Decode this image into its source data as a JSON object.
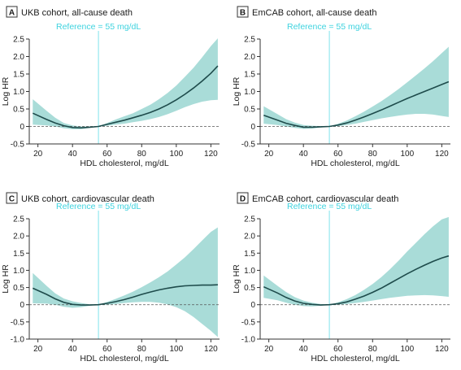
{
  "colors": {
    "band": "#a9dcd8",
    "curve": "#1e4b4b",
    "reference_line": "#7fe3ec",
    "reference_text": "#3fd3df",
    "zero_line": "#555555",
    "axis": "#333333"
  },
  "chart_data": [
    {
      "type": "line",
      "letter": "A",
      "title": "UKB cohort, all-cause death",
      "reference_label": "Reference = 55 mg/dL",
      "reference_x": 55,
      "xlabel": "HDL cholesterol, mg/dL",
      "ylabel": "Log HR",
      "xlim": [
        15,
        125
      ],
      "ylim": [
        -0.5,
        2.5
      ],
      "xticks": [
        20,
        40,
        60,
        80,
        100,
        120
      ],
      "yticks": [
        -0.5,
        0,
        0.5,
        1.0,
        1.5,
        2.0,
        2.5
      ],
      "ytick_labels": [
        "-0.5",
        "0",
        "0.5",
        "1.0",
        "1.5",
        "2.0",
        "2.5"
      ],
      "zero_line": "dashed",
      "series": [
        {
          "x": [
            17,
            25,
            30,
            35,
            40,
            45,
            50,
            55,
            60,
            65,
            70,
            75,
            80,
            85,
            90,
            95,
            100,
            105,
            110,
            115,
            120,
            124
          ],
          "estimate": [
            0.38,
            0.2,
            0.1,
            0.02,
            -0.03,
            -0.04,
            -0.02,
            0.0,
            0.06,
            0.12,
            0.18,
            0.25,
            0.32,
            0.4,
            0.5,
            0.62,
            0.76,
            0.92,
            1.1,
            1.3,
            1.52,
            1.73
          ],
          "lower": [
            0.05,
            0.03,
            0.0,
            -0.05,
            -0.08,
            -0.08,
            -0.04,
            0.0,
            0.02,
            0.05,
            0.08,
            0.12,
            0.16,
            0.21,
            0.27,
            0.35,
            0.45,
            0.55,
            0.64,
            0.71,
            0.75,
            0.76
          ],
          "upper": [
            0.78,
            0.45,
            0.25,
            0.1,
            0.03,
            0.0,
            0.0,
            0.0,
            0.1,
            0.2,
            0.29,
            0.38,
            0.5,
            0.62,
            0.78,
            0.96,
            1.17,
            1.42,
            1.68,
            1.98,
            2.3,
            2.52
          ]
        }
      ]
    },
    {
      "type": "line",
      "letter": "B",
      "title": "EmCAB cohort, all-cause death",
      "reference_label": "Reference = 55 mg/dL",
      "reference_x": 55,
      "xlabel": "HDL cholesterol, mg/dL",
      "ylabel": "Log HR",
      "xlim": [
        15,
        125
      ],
      "ylim": [
        -0.5,
        2.5
      ],
      "xticks": [
        20,
        40,
        60,
        80,
        100,
        120
      ],
      "yticks": [
        -0.5,
        0,
        0.5,
        1.0,
        1.5,
        2.0,
        2.5
      ],
      "ytick_labels": [
        "-0.5",
        "0",
        "0.5",
        "1.0",
        "1.5",
        "2.0",
        "2.5"
      ],
      "zero_line": "dashed",
      "series": [
        {
          "x": [
            17,
            25,
            30,
            35,
            40,
            45,
            50,
            55,
            60,
            65,
            70,
            75,
            80,
            85,
            90,
            95,
            100,
            105,
            110,
            115,
            120,
            124
          ],
          "estimate": [
            0.32,
            0.18,
            0.09,
            0.03,
            -0.02,
            -0.02,
            -0.01,
            0.0,
            0.04,
            0.1,
            0.18,
            0.27,
            0.37,
            0.47,
            0.58,
            0.69,
            0.8,
            0.9,
            1.0,
            1.1,
            1.2,
            1.28
          ],
          "lower": [
            0.08,
            0.04,
            0.0,
            -0.04,
            -0.07,
            -0.06,
            -0.03,
            0.0,
            0.01,
            0.04,
            0.08,
            0.13,
            0.18,
            0.23,
            0.27,
            0.31,
            0.34,
            0.36,
            0.36,
            0.34,
            0.3,
            0.27
          ],
          "upper": [
            0.58,
            0.35,
            0.21,
            0.11,
            0.04,
            0.02,
            0.01,
            0.0,
            0.08,
            0.17,
            0.29,
            0.42,
            0.57,
            0.72,
            0.89,
            1.07,
            1.26,
            1.46,
            1.66,
            1.87,
            2.1,
            2.28
          ]
        }
      ]
    },
    {
      "type": "line",
      "letter": "C",
      "title": "UKB cohort, cardiovascular death",
      "reference_label": "Reference = 55 mg/dL",
      "reference_x": 55,
      "xlabel": "HDL cholesterol, mg/dL",
      "ylabel": "Log HR",
      "xlim": [
        15,
        125
      ],
      "ylim": [
        -1.0,
        2.5
      ],
      "xticks": [
        20,
        40,
        60,
        80,
        100,
        120
      ],
      "yticks": [
        -1.0,
        -0.5,
        0,
        0.5,
        1.0,
        1.5,
        2.0,
        2.5
      ],
      "ytick_labels": [
        "-1.0",
        "-0.5",
        "0",
        "0.5",
        "1.0",
        "1.5",
        "2.0",
        "2.5"
      ],
      "zero_line": "dashed",
      "series": [
        {
          "x": [
            17,
            25,
            30,
            35,
            40,
            45,
            50,
            55,
            60,
            65,
            70,
            75,
            80,
            85,
            90,
            95,
            100,
            105,
            110,
            115,
            120,
            124
          ],
          "estimate": [
            0.48,
            0.3,
            0.17,
            0.07,
            0.01,
            -0.01,
            -0.01,
            0.0,
            0.04,
            0.09,
            0.15,
            0.22,
            0.3,
            0.37,
            0.43,
            0.48,
            0.52,
            0.55,
            0.56,
            0.57,
            0.57,
            0.58
          ],
          "lower": [
            0.04,
            0.03,
            0.0,
            -0.06,
            -0.09,
            -0.07,
            -0.03,
            0.0,
            0.0,
            0.02,
            0.05,
            0.07,
            0.08,
            0.08,
            0.06,
            0.01,
            -0.07,
            -0.19,
            -0.36,
            -0.56,
            -0.76,
            -0.94
          ],
          "upper": [
            0.92,
            0.55,
            0.33,
            0.18,
            0.1,
            0.05,
            0.01,
            0.0,
            0.08,
            0.17,
            0.27,
            0.38,
            0.51,
            0.65,
            0.8,
            0.97,
            1.17,
            1.38,
            1.62,
            1.87,
            2.12,
            2.25
          ]
        }
      ]
    },
    {
      "type": "line",
      "letter": "D",
      "title": "EmCAB cohort, cardiovascular death",
      "reference_label": "Reference = 55 mg/dL",
      "reference_x": 55,
      "xlabel": "HDL cholesterol, mg/dL",
      "ylabel": "Log HR",
      "xlim": [
        15,
        125
      ],
      "ylim": [
        -1.0,
        2.5
      ],
      "xticks": [
        20,
        40,
        60,
        80,
        100,
        120
      ],
      "yticks": [
        -1.0,
        -0.5,
        0,
        0.5,
        1.0,
        1.5,
        2.0,
        2.5
      ],
      "ytick_labels": [
        "-1.0",
        "-0.5",
        "0",
        "0.5",
        "1.0",
        "1.5",
        "2.0",
        "2.5"
      ],
      "zero_line": "dashed",
      "series": [
        {
          "x": [
            17,
            25,
            30,
            35,
            40,
            45,
            50,
            55,
            60,
            65,
            70,
            75,
            80,
            85,
            90,
            95,
            100,
            105,
            110,
            115,
            120,
            124
          ],
          "estimate": [
            0.52,
            0.34,
            0.21,
            0.11,
            0.04,
            0.01,
            -0.01,
            0.0,
            0.03,
            0.08,
            0.16,
            0.25,
            0.36,
            0.48,
            0.62,
            0.76,
            0.9,
            1.03,
            1.15,
            1.26,
            1.36,
            1.42
          ],
          "lower": [
            0.2,
            0.13,
            0.06,
            0.0,
            -0.04,
            -0.05,
            -0.03,
            0.0,
            0.0,
            0.02,
            0.05,
            0.08,
            0.12,
            0.16,
            0.2,
            0.23,
            0.26,
            0.27,
            0.28,
            0.27,
            0.25,
            0.23
          ],
          "upper": [
            0.85,
            0.55,
            0.37,
            0.22,
            0.12,
            0.06,
            0.02,
            0.0,
            0.07,
            0.16,
            0.28,
            0.43,
            0.6,
            0.8,
            1.03,
            1.28,
            1.55,
            1.8,
            2.05,
            2.28,
            2.48,
            2.55
          ]
        }
      ]
    }
  ]
}
